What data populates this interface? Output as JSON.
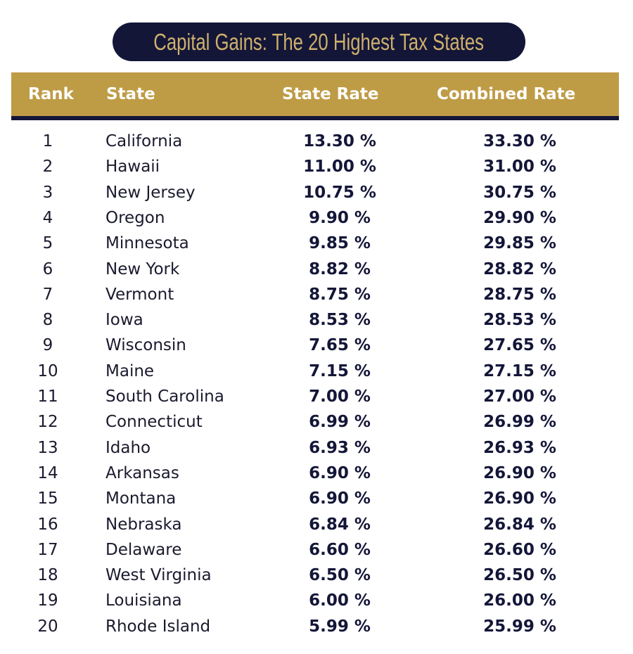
{
  "title": "Capital Gains: The 20 Highest Tax States",
  "colors": {
    "navy": "#141638",
    "gold": "#be9b45",
    "title_text": "#cdb06c"
  },
  "chart_data": {
    "type": "table",
    "title": "Capital Gains: The 20 Highest Tax States",
    "columns": [
      "Rank",
      "State",
      "State Rate",
      "Combined Rate"
    ],
    "rows": [
      [
        "1",
        "California",
        "13.30 %",
        "33.30 %"
      ],
      [
        "2",
        "Hawaii",
        "11.00 %",
        "31.00 %"
      ],
      [
        "3",
        "New Jersey",
        "10.75 %",
        "30.75 %"
      ],
      [
        "4",
        "Oregon",
        "9.90 %",
        "29.90 %"
      ],
      [
        "5",
        "Minnesota",
        "9.85 %",
        "29.85 %"
      ],
      [
        "6",
        "New York",
        "8.82 %",
        "28.82 %"
      ],
      [
        "7",
        "Vermont",
        "8.75 %",
        "28.75 %"
      ],
      [
        "8",
        "Iowa",
        "8.53 %",
        "28.53 %"
      ],
      [
        "9",
        "Wisconsin",
        "7.65 %",
        "27.65 %"
      ],
      [
        "10",
        "Maine",
        "7.15 %",
        "27.15 %"
      ],
      [
        "11",
        "South Carolina",
        "7.00 %",
        "27.00 %"
      ],
      [
        "12",
        "Connecticut",
        "6.99 %",
        "26.99 %"
      ],
      [
        "13",
        "Idaho",
        "6.93 %",
        "26.93 %"
      ],
      [
        "14",
        "Arkansas",
        "6.90 %",
        "26.90 %"
      ],
      [
        "15",
        "Montana",
        "6.90 %",
        "26.90 %"
      ],
      [
        "16",
        "Nebraska",
        "6.84 %",
        "26.84 %"
      ],
      [
        "17",
        "Delaware",
        "6.60 %",
        "26.60 %"
      ],
      [
        "18",
        "West Virginia",
        "6.50 %",
        "26.50 %"
      ],
      [
        "19",
        "Louisiana",
        "6.00 %",
        "26.00 %"
      ],
      [
        "20",
        "Rhode Island",
        "5.99 %",
        "25.99 %"
      ]
    ]
  }
}
